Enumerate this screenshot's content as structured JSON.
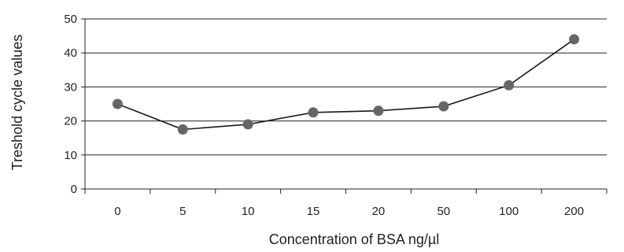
{
  "chart_data": {
    "type": "line",
    "categories": [
      "0",
      "5",
      "10",
      "15",
      "20",
      "50",
      "100",
      "200"
    ],
    "series": [
      {
        "values": [
          25,
          17.5,
          19,
          22.5,
          23,
          24.3,
          30.5,
          44
        ]
      }
    ],
    "title": "",
    "xlabel": "Concentration of BSA ng/µl",
    "ylabel": "Treshold cycle values",
    "ylim": [
      0,
      50
    ],
    "yticks": [
      "0",
      "10",
      "20",
      "30",
      "40",
      "50"
    ],
    "grid": true,
    "colors": {
      "line": "#1a1a1a",
      "marker": "#666666",
      "grid": "#222222",
      "axis": "#222222"
    }
  }
}
